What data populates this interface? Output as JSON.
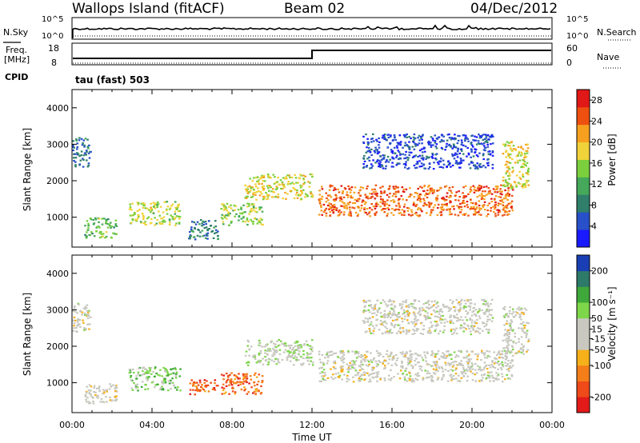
{
  "header": {
    "title": "Wallops Island (fitACF)",
    "beam": "Beam 02",
    "date": "04/Dec/2012"
  },
  "status": {
    "nsky_label": "N.Sky",
    "nsearch_label": "N.Search",
    "freq_label": "Freq.",
    "freq_unit": "[MHz]",
    "nave_label": "Nave",
    "cpid_label": "CPID",
    "cpid_value": "tau (fast) 503",
    "noise_ticks": [
      "10^5",
      "10^0"
    ],
    "freq_ticks": [
      "18",
      "8"
    ],
    "nave_ticks": [
      "60",
      "0"
    ]
  },
  "chart_data": [
    {
      "type": "heatmap",
      "title": "",
      "xlabel": "",
      "ylabel": "Slant Range [km]",
      "x_ticks": [
        "00:00",
        "04:00",
        "08:00",
        "12:00",
        "16:00",
        "20:00",
        "00:00"
      ],
      "y_ticks": [
        1000,
        2000,
        3000,
        4000
      ],
      "xlim": [
        0,
        24
      ],
      "ylim": [
        180,
        4500
      ],
      "colorbar": {
        "label": "Power [dB]",
        "ticks": [
          4,
          8,
          12,
          16,
          20,
          24,
          28
        ],
        "range": [
          0,
          30
        ],
        "colors": [
          "#1a1aff",
          "#2850c8",
          "#2f7f6a",
          "#45a85a",
          "#7bcf3c",
          "#f0d23a",
          "#f7a020",
          "#ee5010",
          "#e01818"
        ]
      },
      "regions": [
        {
          "t0": 0.6,
          "t1": 2.2,
          "r0": 450,
          "r1": 1000,
          "level": 0.45
        },
        {
          "t0": 2.8,
          "t1": 5.4,
          "r0": 800,
          "r1": 1450,
          "level": 0.55
        },
        {
          "t0": 5.8,
          "t1": 7.3,
          "r0": 400,
          "r1": 950,
          "level": 0.25
        },
        {
          "t0": 7.4,
          "t1": 9.5,
          "r0": 800,
          "r1": 1400,
          "level": 0.5
        },
        {
          "t0": 8.6,
          "t1": 12.0,
          "r0": 1500,
          "r1": 2200,
          "level": 0.6
        },
        {
          "t0": 12.3,
          "t1": 22.0,
          "r0": 1050,
          "r1": 1900,
          "level": 0.8
        },
        {
          "t0": 14.5,
          "t1": 21.0,
          "r0": 2350,
          "r1": 3300,
          "level": 0.15
        },
        {
          "t0": 0.0,
          "t1": 0.9,
          "r0": 2400,
          "r1": 3200,
          "level": 0.25
        },
        {
          "t0": 21.5,
          "t1": 22.8,
          "r0": 1800,
          "r1": 3100,
          "level": 0.6
        }
      ]
    },
    {
      "type": "heatmap",
      "title": "",
      "xlabel": "Time UT",
      "ylabel": "Slant Range [km]",
      "x_ticks": [
        "00:00",
        "04:00",
        "08:00",
        "12:00",
        "16:00",
        "20:00",
        "00:00"
      ],
      "y_ticks": [
        1000,
        2000,
        3000,
        4000
      ],
      "xlim": [
        0,
        24
      ],
      "ylim": [
        180,
        4500
      ],
      "colorbar": {
        "label": "Velocity [m s⁻¹]",
        "ticks": [
          200,
          100,
          50,
          15,
          -15,
          -50,
          -100,
          -200
        ],
        "range": [
          -250,
          250
        ],
        "colors": [
          "#e21a1a",
          "#ef4a1a",
          "#f47e1a",
          "#f6b01a",
          "#c8c8c0",
          "#c8c8c0",
          "#7ed64a",
          "#3fa83a",
          "#2e7a6a",
          "#1a3fb4"
        ]
      },
      "regions": [
        {
          "t0": 0.6,
          "t1": 2.2,
          "r0": 450,
          "r1": 1000,
          "level": -0.05
        },
        {
          "t0": 2.8,
          "t1": 5.4,
          "r0": 800,
          "r1": 1450,
          "level": 0.3
        },
        {
          "t0": 5.8,
          "t1": 7.3,
          "r0": 700,
          "r1": 1100,
          "level": -0.6
        },
        {
          "t0": 7.4,
          "t1": 9.5,
          "r0": 700,
          "r1": 1300,
          "level": -0.6
        },
        {
          "t0": 8.6,
          "t1": 12.0,
          "r0": 1500,
          "r1": 2200,
          "level": 0.1
        },
        {
          "t0": 12.3,
          "t1": 22.0,
          "r0": 1050,
          "r1": 1900,
          "level": 0.0
        },
        {
          "t0": 14.5,
          "t1": 21.0,
          "r0": 2350,
          "r1": 3300,
          "level": 0.0
        },
        {
          "t0": 0.0,
          "t1": 0.9,
          "r0": 2400,
          "r1": 3200,
          "level": 0.0
        },
        {
          "t0": 21.5,
          "t1": 22.8,
          "r0": 1800,
          "r1": 3100,
          "level": 0.0
        }
      ]
    }
  ]
}
